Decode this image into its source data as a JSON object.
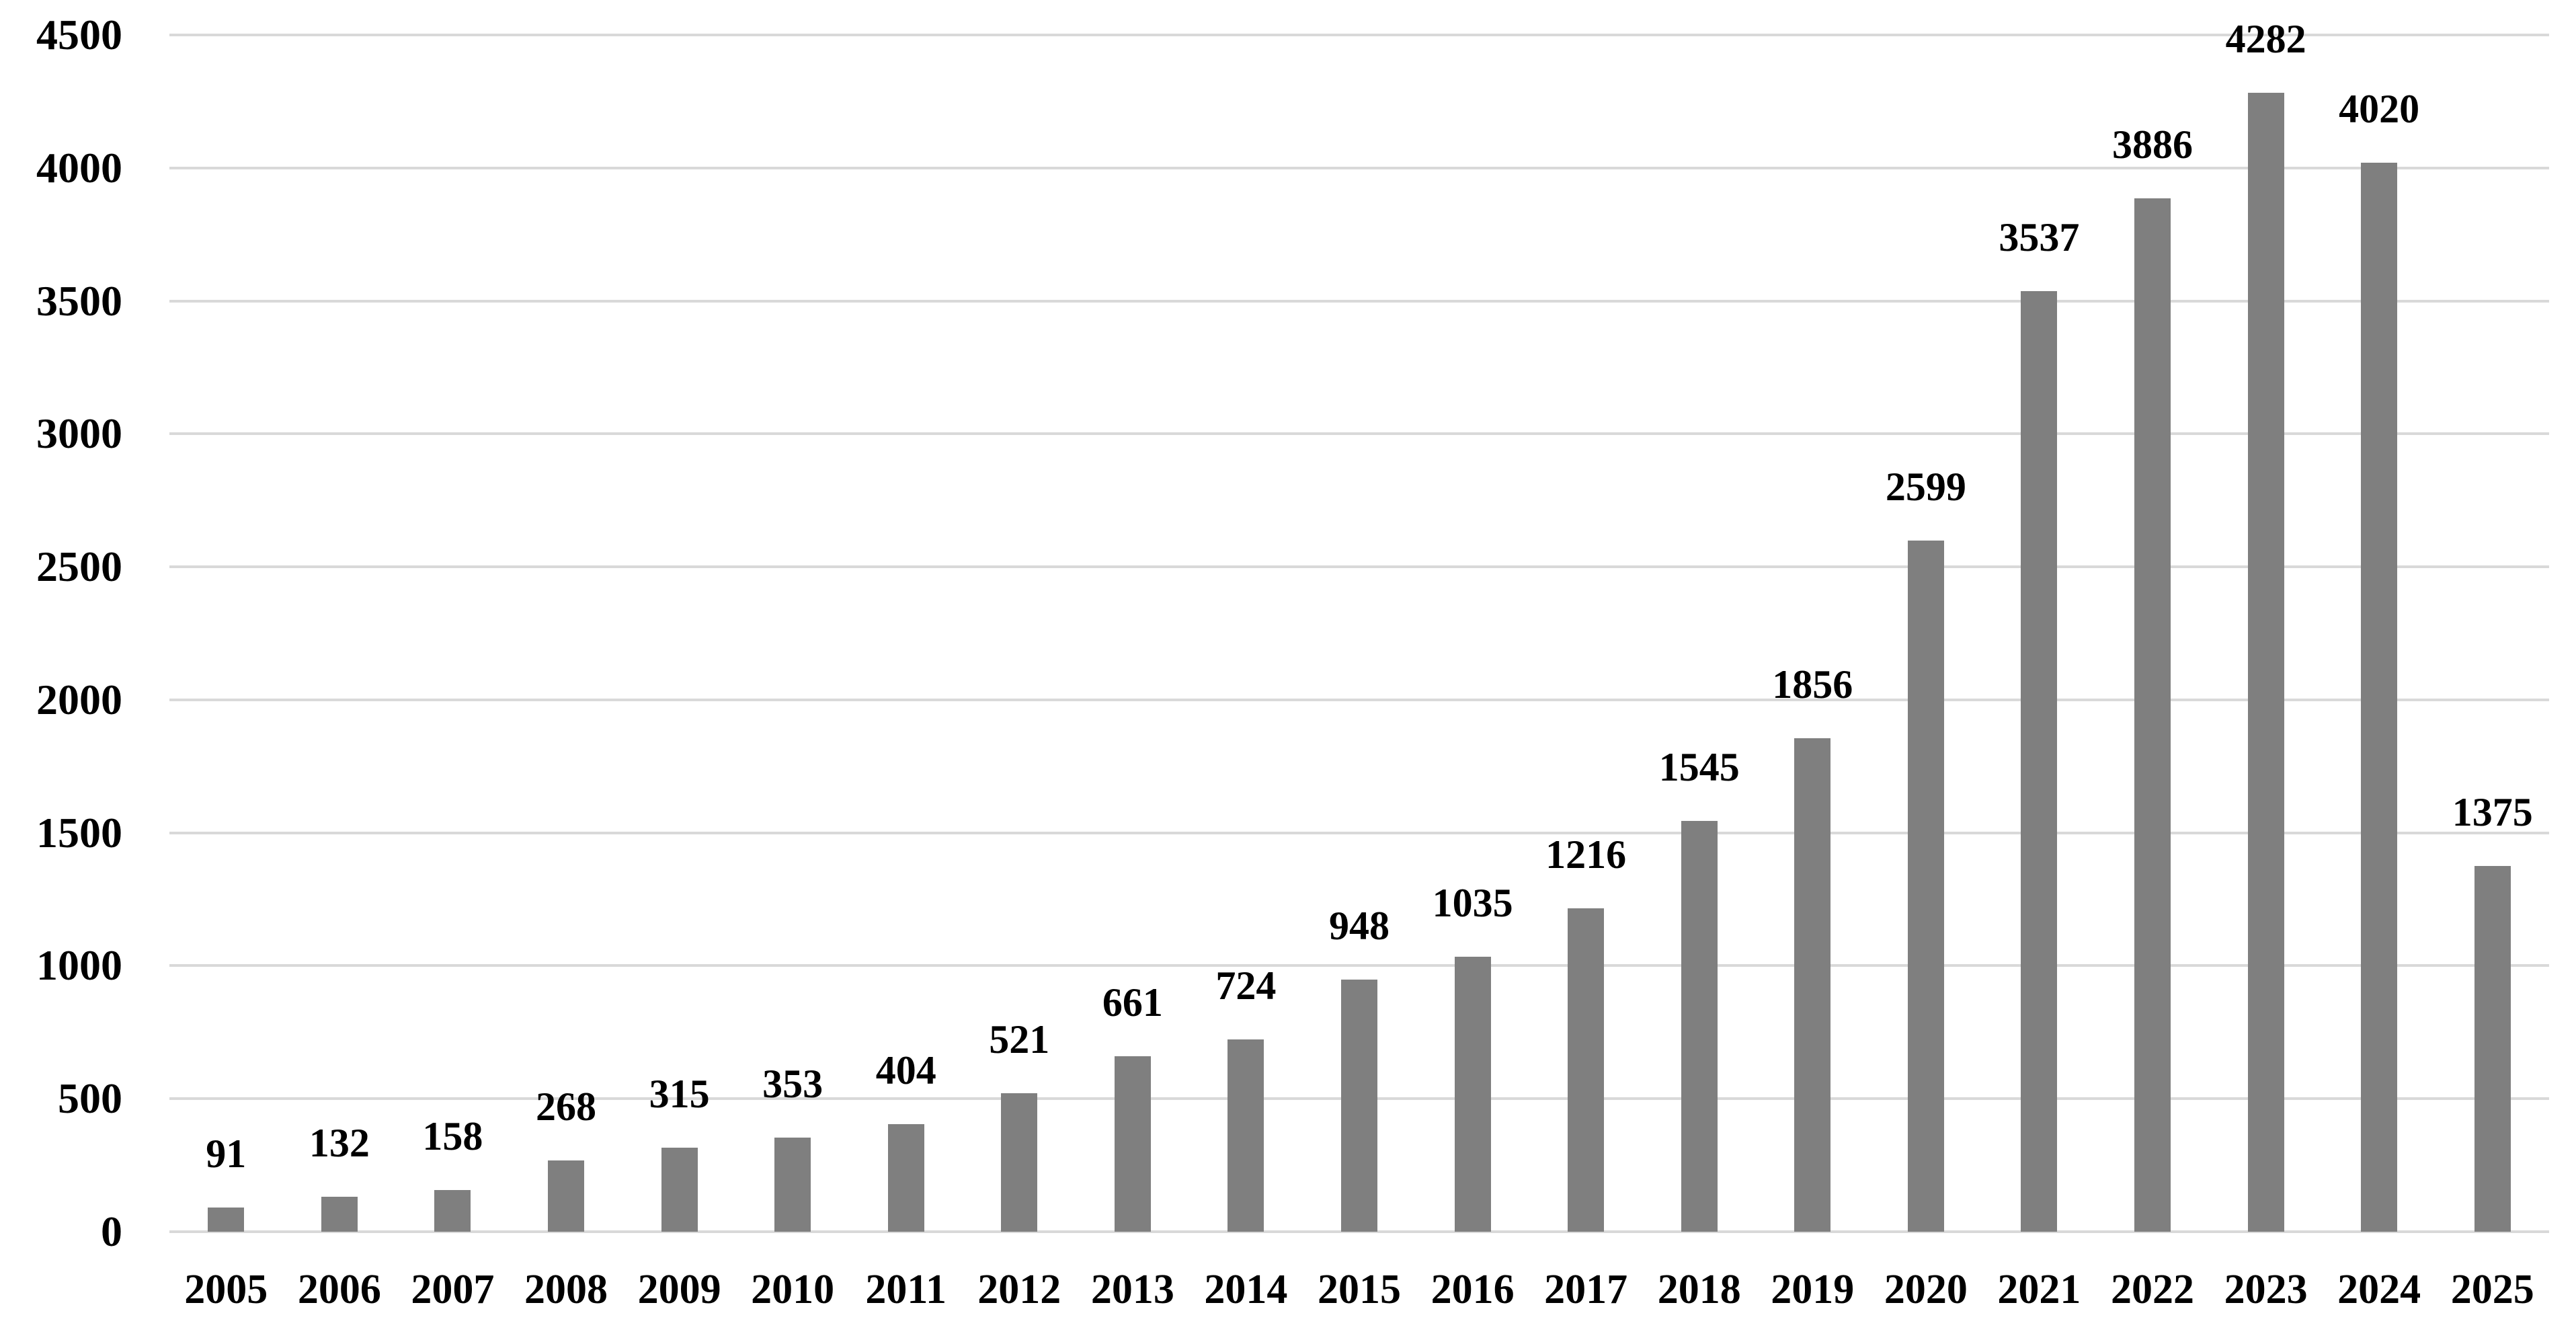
{
  "chart_data": {
    "type": "bar",
    "title": "",
    "xlabel": "",
    "ylabel": "",
    "categories": [
      "2005",
      "2006",
      "2007",
      "2008",
      "2009",
      "2010",
      "2011",
      "2012",
      "2013",
      "2014",
      "2015",
      "2016",
      "2017",
      "2018",
      "2019",
      "2020",
      "2021",
      "2022",
      "2023",
      "2024",
      "2025"
    ],
    "values": [
      91,
      132,
      158,
      268,
      315,
      353,
      404,
      521,
      661,
      724,
      948,
      1035,
      1216,
      1545,
      1856,
      2599,
      3537,
      3886,
      4282,
      4020,
      1375
    ],
    "data_labels": [
      91,
      132,
      158,
      268,
      315,
      353,
      404,
      521,
      661,
      724,
      948,
      1035,
      1216,
      1545,
      1856,
      2599,
      3537,
      3886,
      4282,
      4020,
      1375
    ],
    "ylim": [
      0,
      4500
    ],
    "yticks": [
      0,
      500,
      1000,
      1500,
      2000,
      2500,
      3000,
      3500,
      4000,
      4500
    ],
    "grid": true,
    "legend": false,
    "bar_color": "#7f7f7f",
    "gridline_color": "#d9d9d9",
    "label_color": "#000000",
    "background_color": "#ffffff"
  }
}
